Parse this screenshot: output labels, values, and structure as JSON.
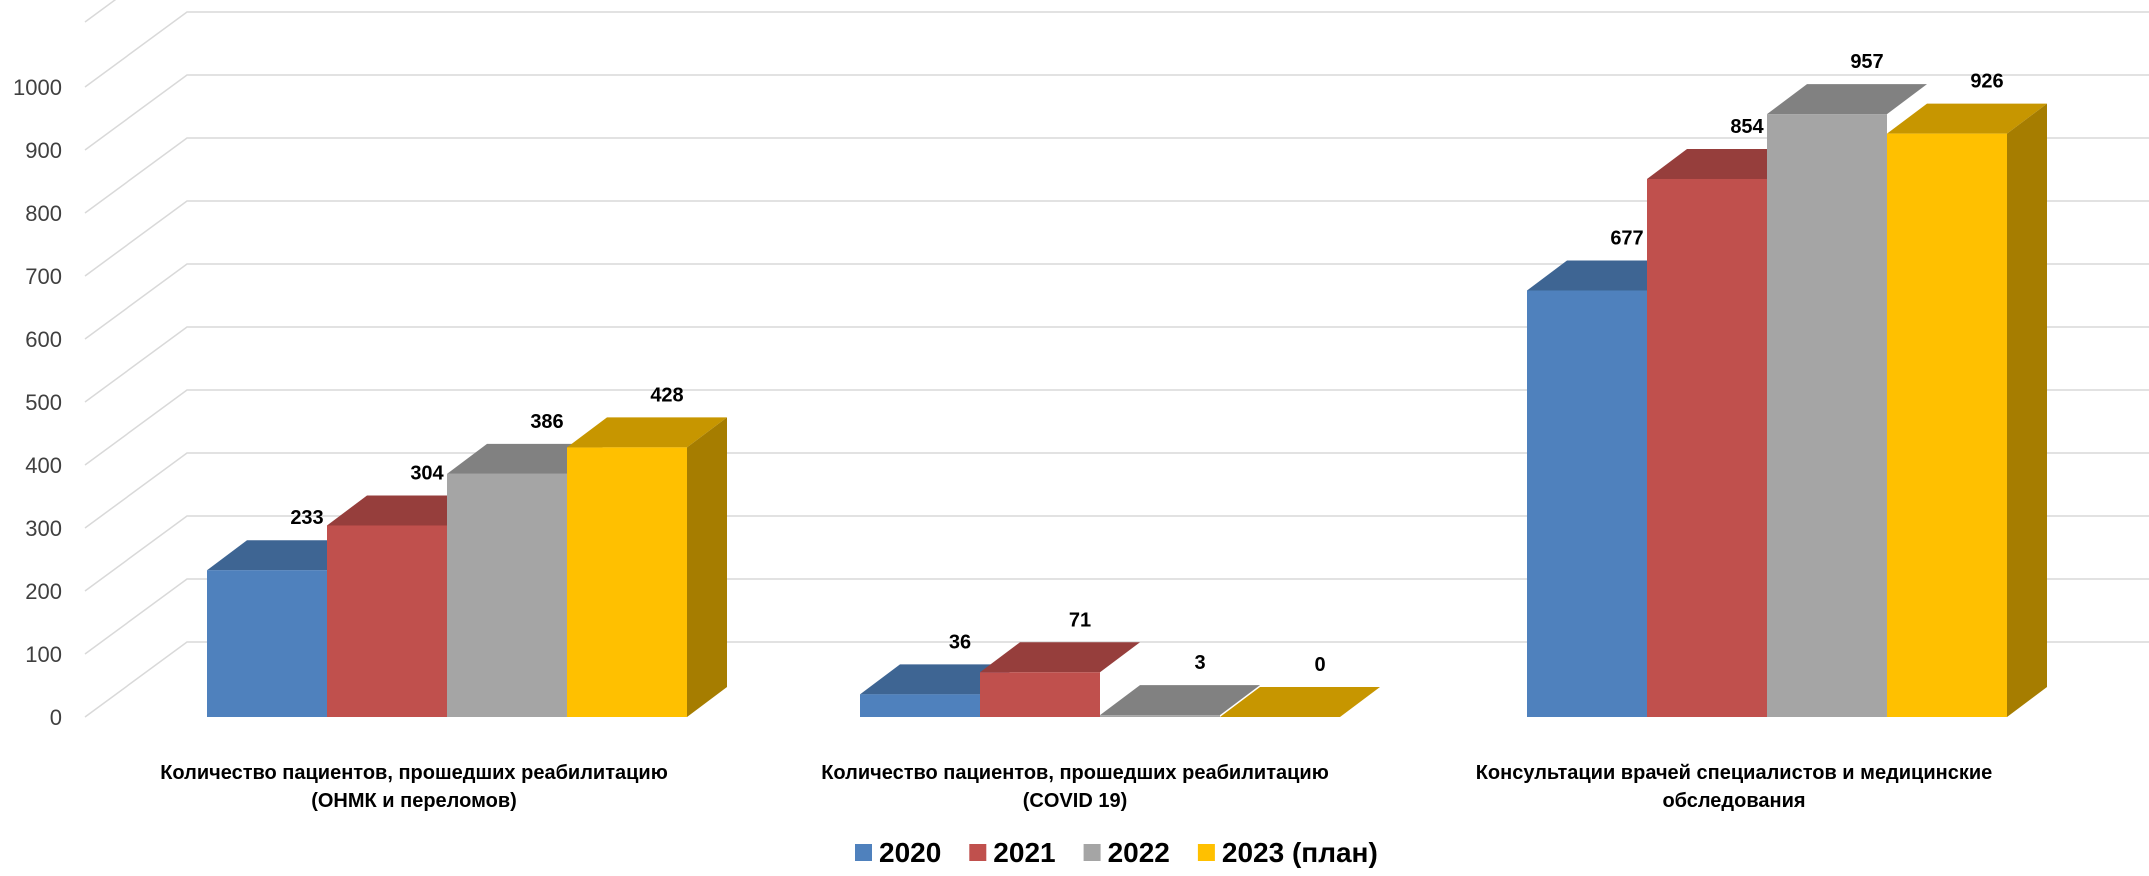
{
  "chart_data": {
    "type": "bar",
    "title": "",
    "xlabel": "",
    "ylabel": "",
    "ylim": [
      0,
      1000
    ],
    "yticks": [
      0,
      100,
      200,
      300,
      400,
      500,
      600,
      700,
      800,
      900,
      1000
    ],
    "grid": true,
    "legend_position": "bottom",
    "style": "3d-clustered-column",
    "categories": [
      [
        "Количество пациентов, прошедших реабилитацию",
        "(ОНМК и переломов)"
      ],
      [
        "Количество пациентов, прошедших реабилитацию",
        "(COVID 19)"
      ],
      [
        "Консультации  врачей специалистов и медицинские",
        "обследования"
      ]
    ],
    "series": [
      {
        "name": "2020",
        "color": "#4f81bd",
        "values": [
          233,
          36,
          677
        ]
      },
      {
        "name": "2021",
        "color": "#c0504d",
        "values": [
          304,
          71,
          854
        ]
      },
      {
        "name": "2022",
        "color": "#a5a5a5",
        "values": [
          386,
          3,
          957
        ]
      },
      {
        "name": "2023 (план)",
        "color": "#ffc000",
        "values": [
          428,
          0,
          926
        ]
      }
    ]
  }
}
